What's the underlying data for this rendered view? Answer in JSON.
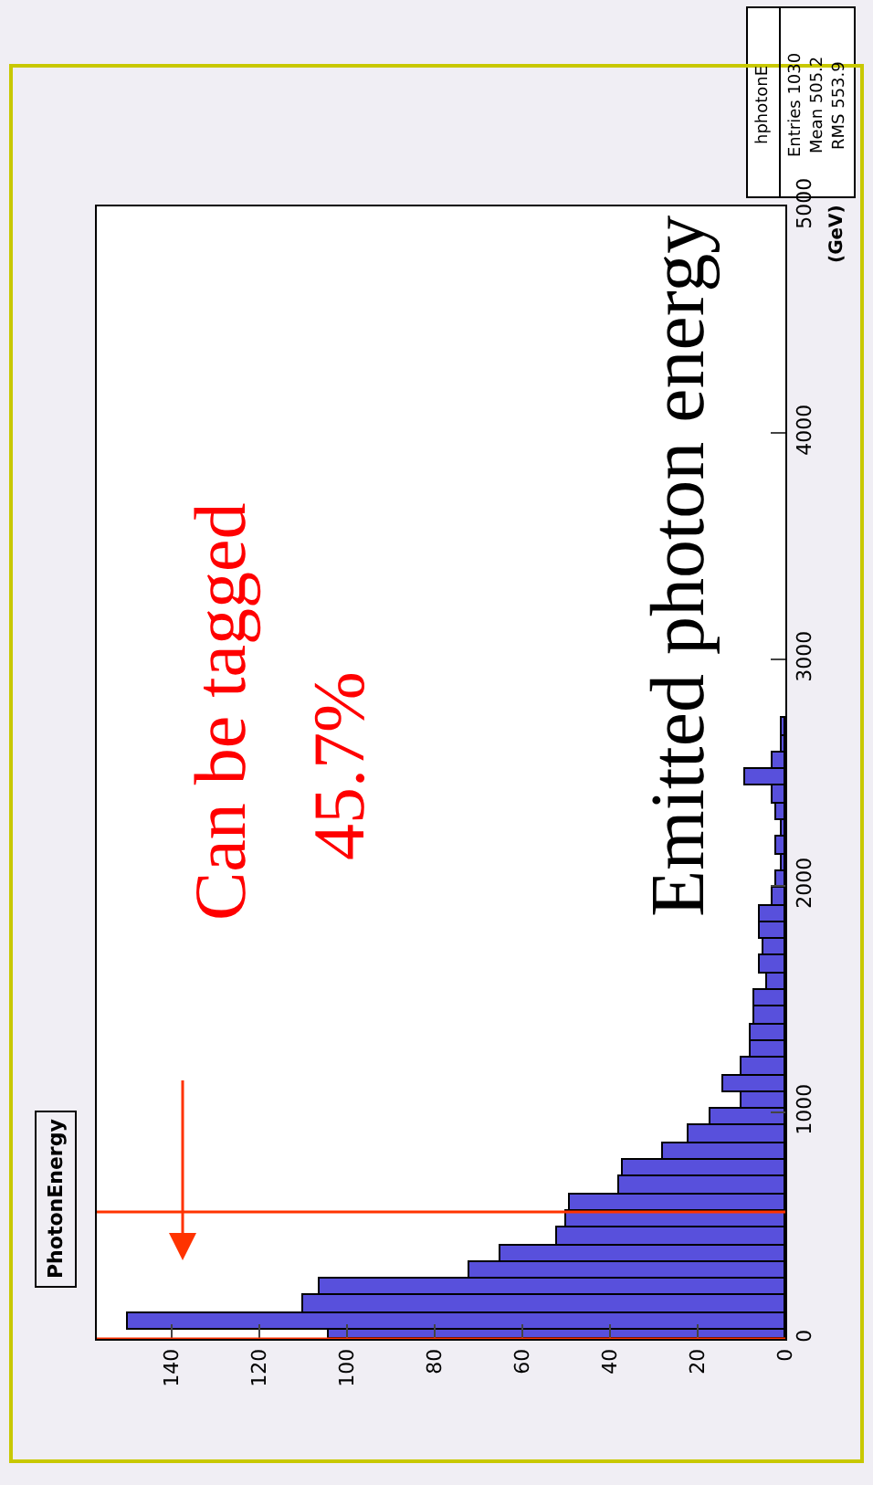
{
  "chart_data": {
    "type": "histogram",
    "orientation": "horizontal",
    "title": "PhotonEnergy",
    "ylabel": "(GeV)",
    "bins": [
      0,
      40,
      115,
      190,
      265,
      340,
      415,
      490,
      565,
      640,
      715,
      790,
      865,
      940,
      1015,
      1090,
      1165,
      1240,
      1315,
      1390,
      1465,
      1540,
      1615,
      1690,
      1765,
      1840,
      1915,
      1990,
      2065,
      2140,
      2215,
      2290,
      2365,
      2440,
      2515,
      2590,
      2665,
      2740
    ],
    "values": [
      104,
      150,
      110,
      106,
      72,
      65,
      52,
      50,
      49,
      38,
      37,
      28,
      22,
      17,
      10,
      14,
      10,
      8,
      8,
      7,
      7,
      4,
      6,
      5,
      6,
      6,
      3,
      2,
      1,
      2,
      1,
      2,
      3,
      9,
      3,
      1,
      1
    ],
    "color": "#5850dc",
    "xlim": [
      157,
      0
    ],
    "xticks": [
      0,
      20,
      40,
      60,
      80,
      100,
      120,
      140
    ],
    "ylim": [
      0,
      5000
    ],
    "yticks": [
      0,
      1000,
      2000,
      3000,
      4000,
      5000
    ],
    "ref_lines": [
      {
        "axis": "y",
        "value": 560,
        "color": "#ff3300"
      },
      {
        "axis": "y",
        "value": 0,
        "color": "#ff3300"
      }
    ],
    "annotations": [
      "hphotonE",
      "Entries 1030",
      "Mean 505.2",
      "RMS 553.9",
      "Can be tagged",
      "45.7%",
      "Emitted photon energy"
    ]
  }
}
